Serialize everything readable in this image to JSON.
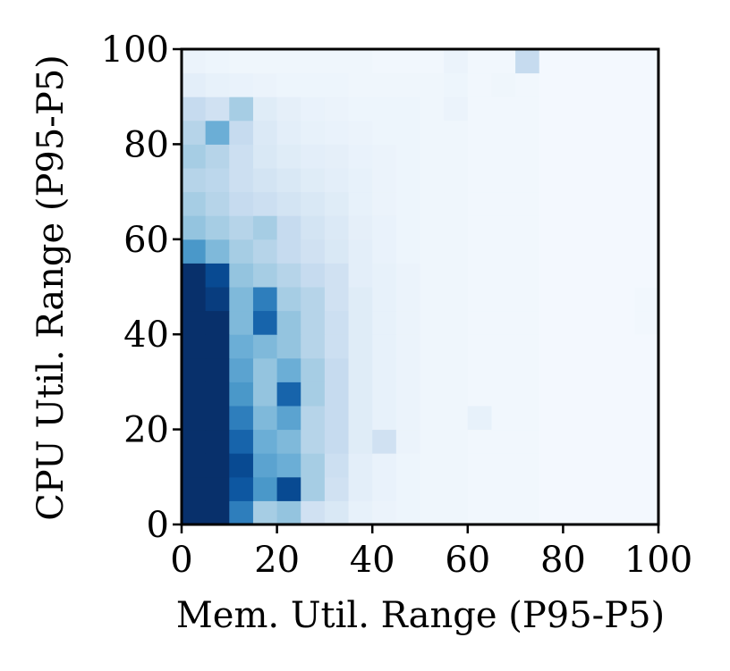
{
  "chart_data": {
    "type": "heatmap",
    "xlabel": "Mem. Util. Range (P95-P5)",
    "ylabel": "CPU Util. Range (P95-P5)",
    "xbins": [
      0,
      5,
      10,
      15,
      20,
      25,
      30,
      35,
      40,
      45,
      50,
      55,
      60,
      65,
      70,
      75,
      80,
      85,
      90,
      95,
      100
    ],
    "ybins": [
      0,
      5,
      10,
      15,
      20,
      25,
      30,
      35,
      40,
      45,
      50,
      55,
      60,
      65,
      70,
      75,
      80,
      85,
      90,
      95,
      100
    ],
    "z": [
      [
        100,
        100,
        70,
        35,
        40,
        20,
        15,
        8,
        6,
        5,
        4,
        4,
        3,
        3,
        3,
        2,
        2,
        2,
        2,
        2
      ],
      [
        100,
        100,
        85,
        60,
        90,
        35,
        20,
        10,
        7,
        5,
        4,
        4,
        3,
        3,
        3,
        2,
        2,
        2,
        2,
        2
      ],
      [
        100,
        100,
        90,
        55,
        50,
        35,
        22,
        10,
        7,
        5,
        4,
        4,
        3,
        3,
        3,
        2,
        2,
        2,
        2,
        2
      ],
      [
        100,
        100,
        80,
        50,
        45,
        30,
        25,
        12,
        20,
        6,
        4,
        4,
        3,
        3,
        3,
        2,
        2,
        2,
        2,
        2
      ],
      [
        100,
        100,
        70,
        45,
        55,
        30,
        25,
        12,
        8,
        6,
        4,
        4,
        8,
        3,
        3,
        2,
        2,
        2,
        2,
        2
      ],
      [
        100,
        100,
        60,
        40,
        80,
        35,
        25,
        12,
        8,
        6,
        4,
        4,
        3,
        3,
        3,
        2,
        2,
        2,
        2,
        2
      ],
      [
        100,
        100,
        55,
        40,
        50,
        35,
        25,
        12,
        8,
        6,
        4,
        4,
        3,
        3,
        3,
        2,
        2,
        2,
        2,
        2
      ],
      [
        100,
        100,
        50,
        45,
        40,
        30,
        22,
        12,
        8,
        6,
        4,
        4,
        3,
        3,
        3,
        2,
        2,
        2,
        2,
        2
      ],
      [
        100,
        100,
        45,
        80,
        40,
        30,
        22,
        12,
        8,
        6,
        4,
        4,
        3,
        3,
        3,
        2,
        2,
        2,
        2,
        3
      ],
      [
        100,
        95,
        45,
        70,
        35,
        30,
        20,
        12,
        8,
        6,
        4,
        4,
        3,
        3,
        3,
        2,
        2,
        2,
        2,
        3
      ],
      [
        100,
        90,
        40,
        35,
        30,
        25,
        20,
        10,
        8,
        6,
        4,
        4,
        3,
        3,
        3,
        2,
        2,
        2,
        2,
        2
      ],
      [
        60,
        45,
        35,
        30,
        25,
        20,
        15,
        10,
        7,
        5,
        4,
        4,
        3,
        3,
        3,
        2,
        2,
        2,
        2,
        2
      ],
      [
        40,
        35,
        30,
        35,
        25,
        18,
        14,
        9,
        7,
        5,
        4,
        4,
        3,
        3,
        3,
        2,
        2,
        2,
        2,
        2
      ],
      [
        35,
        30,
        25,
        22,
        18,
        15,
        12,
        8,
        6,
        5,
        4,
        4,
        3,
        3,
        3,
        2,
        2,
        2,
        2,
        2
      ],
      [
        30,
        28,
        22,
        18,
        15,
        12,
        10,
        8,
        6,
        5,
        4,
        4,
        3,
        3,
        3,
        2,
        2,
        2,
        2,
        2
      ],
      [
        35,
        30,
        22,
        15,
        12,
        10,
        9,
        7,
        6,
        5,
        4,
        4,
        3,
        3,
        3,
        2,
        2,
        2,
        2,
        2
      ],
      [
        30,
        50,
        25,
        14,
        10,
        8,
        7,
        6,
        5,
        5,
        4,
        4,
        3,
        3,
        3,
        2,
        2,
        2,
        2,
        2
      ],
      [
        25,
        20,
        35,
        12,
        9,
        7,
        6,
        5,
        5,
        5,
        4,
        6,
        3,
        3,
        3,
        2,
        2,
        2,
        2,
        2
      ],
      [
        10,
        8,
        7,
        6,
        5,
        5,
        5,
        4,
        4,
        4,
        4,
        5,
        3,
        4,
        3,
        2,
        2,
        2,
        2,
        2
      ],
      [
        6,
        5,
        4,
        4,
        4,
        4,
        4,
        4,
        3,
        3,
        3,
        6,
        3,
        3,
        25,
        2,
        2,
        2,
        2,
        2
      ]
    ],
    "colormap": [
      "#f7fbff",
      "#deebf7",
      "#c6dbef",
      "#9ecae1",
      "#6baed6",
      "#4292c6",
      "#2171b5",
      "#08519c",
      "#08306b"
    ],
    "xlim": [
      0,
      100
    ],
    "ylim": [
      0,
      100
    ],
    "xticks": [
      0,
      20,
      40,
      60,
      80,
      100
    ],
    "yticks": [
      0,
      20,
      40,
      60,
      80,
      100
    ]
  }
}
